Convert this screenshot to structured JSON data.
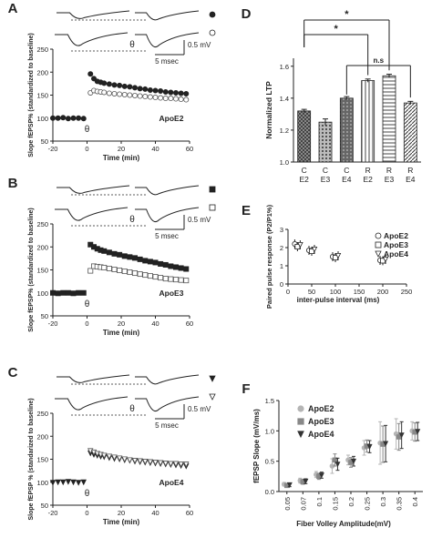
{
  "panel_letters": [
    "A",
    "B",
    "C",
    "D",
    "E",
    "F"
  ],
  "colors": {
    "ink": "#222222",
    "grey": "#9a9a9a",
    "bar_dark": "#555555"
  },
  "chart_data": [
    {
      "panel": "A",
      "type": "scatter",
      "title": "",
      "xlabel": "Time (min)",
      "ylabel": "Slope fEPSP% (standardized to baseline)",
      "x_ticks": [
        "-20",
        "0",
        "20",
        "40",
        "60"
      ],
      "y_ticks": [
        "50",
        "100",
        "150",
        "200",
        "250"
      ],
      "xlim": [
        -20,
        60
      ],
      "ylim": [
        50,
        250
      ],
      "label": "ApoE2",
      "theta_label": "θ",
      "theta_x": 0,
      "scale_bar": {
        "voltage": "0.5 mV",
        "time": "5 msec"
      },
      "trace_markers": [
        "filled-circle",
        "open-circle"
      ],
      "series": [
        {
          "marker": "filled-circle",
          "x": [
            -20,
            -17,
            -14,
            -11,
            -8,
            -5,
            -2,
            2,
            4,
            6,
            8,
            10,
            13,
            16,
            19,
            22,
            25,
            28,
            31,
            34,
            37,
            40,
            43,
            46,
            49,
            52,
            55,
            58
          ],
          "y": [
            100,
            100,
            101,
            99,
            100,
            100,
            99,
            196,
            186,
            180,
            178,
            176,
            174,
            172,
            171,
            169,
            168,
            166,
            164,
            163,
            161,
            160,
            159,
            157,
            156,
            155,
            154,
            153
          ]
        },
        {
          "marker": "open-circle",
          "x": [
            2,
            4,
            6,
            8,
            10,
            13,
            16,
            19,
            22,
            25,
            28,
            31,
            34,
            37,
            40,
            43,
            46,
            49,
            52,
            55,
            58
          ],
          "y": [
            155,
            160,
            158,
            157,
            156,
            154,
            153,
            152,
            151,
            150,
            149,
            148,
            147,
            146,
            145,
            144,
            143,
            143,
            142,
            141,
            140
          ]
        }
      ]
    },
    {
      "panel": "B",
      "type": "scatter",
      "title": "",
      "xlabel": "Time (min)",
      "ylabel": "Slope fEPSP% (standardized to baseline)",
      "x_ticks": [
        "-20",
        "0",
        "20",
        "40",
        "60"
      ],
      "y_ticks": [
        "50",
        "100",
        "150",
        "200",
        "250"
      ],
      "xlim": [
        -20,
        60
      ],
      "ylim": [
        50,
        250
      ],
      "label": "ApoE3",
      "theta_label": "θ",
      "theta_x": 0,
      "scale_bar": {
        "voltage": "0.5 mV",
        "time": "5 msec"
      },
      "trace_markers": [
        "filled-square",
        "open-square"
      ],
      "series": [
        {
          "marker": "filled-square",
          "x": [
            -20,
            -17,
            -14,
            -11,
            -8,
            -5,
            -2,
            2,
            4,
            6,
            8,
            10,
            13,
            16,
            19,
            22,
            25,
            28,
            31,
            34,
            37,
            40,
            43,
            46,
            49,
            52,
            55,
            58
          ],
          "y": [
            100,
            99,
            100,
            100,
            99,
            100,
            100,
            205,
            200,
            196,
            193,
            191,
            188,
            185,
            183,
            180,
            178,
            176,
            173,
            170,
            168,
            166,
            163,
            161,
            158,
            156,
            154,
            152
          ]
        },
        {
          "marker": "open-square",
          "x": [
            2,
            4,
            6,
            8,
            10,
            13,
            16,
            19,
            22,
            25,
            28,
            31,
            34,
            37,
            40,
            43,
            46,
            49,
            52,
            55,
            58
          ],
          "y": [
            148,
            158,
            157,
            156,
            155,
            153,
            151,
            149,
            147,
            145,
            143,
            141,
            139,
            137,
            135,
            133,
            131,
            130,
            129,
            128,
            127
          ]
        }
      ]
    },
    {
      "panel": "C",
      "type": "scatter",
      "title": "",
      "xlabel": "Time (min)",
      "ylabel": "Slope fEPSP % (standarized to baseline)",
      "x_ticks": [
        "-20",
        "0",
        "20",
        "40",
        "60"
      ],
      "y_ticks": [
        "50",
        "100",
        "150",
        "200",
        "250"
      ],
      "xlim": [
        -20,
        60
      ],
      "ylim": [
        50,
        250
      ],
      "label": "ApoE4",
      "theta_label": "θ",
      "theta_x": 0,
      "scale_bar": {
        "voltage": "0.5 mV",
        "time": "5 msec"
      },
      "trace_markers": [
        "filled-triangle",
        "open-triangle"
      ],
      "series": [
        {
          "marker": "filled-triangle",
          "x": [
            -20,
            -17,
            -14,
            -11,
            -8,
            -5,
            -2,
            2,
            4,
            6,
            8,
            10,
            13,
            16,
            19,
            22,
            25,
            28,
            31,
            34,
            37,
            40,
            43,
            46,
            49,
            52,
            55,
            58
          ],
          "y": [
            99,
            100,
            100,
            101,
            100,
            99,
            100,
            163,
            160,
            158,
            156,
            155,
            153,
            151,
            150,
            148,
            147,
            145,
            144,
            143,
            142,
            141,
            140,
            139,
            138,
            137,
            136,
            135
          ]
        },
        {
          "marker": "open-triangle",
          "x": [
            2,
            4,
            6,
            8,
            10,
            13,
            16,
            19,
            22,
            25,
            28,
            31,
            34,
            37,
            40,
            43,
            46,
            49,
            52,
            55,
            58
          ],
          "y": [
            168,
            165,
            162,
            160,
            158,
            156,
            154,
            152,
            150,
            148,
            147,
            146,
            145,
            144,
            143,
            142,
            141,
            140,
            140,
            139,
            139
          ]
        }
      ]
    },
    {
      "panel": "D",
      "type": "bar",
      "title": "",
      "xlabel": "",
      "ylabel": "Normalized LTP",
      "ylim": [
        1.0,
        1.65
      ],
      "y_ticks": [
        "1.0",
        "1.2",
        "1.4",
        "1.6"
      ],
      "categories": [
        [
          "C",
          "E2"
        ],
        [
          "C",
          "E3"
        ],
        [
          "C",
          "E4"
        ],
        [
          "R",
          "E2"
        ],
        [
          "R",
          "E3"
        ],
        [
          "R",
          "E4"
        ]
      ],
      "values": [
        1.32,
        1.25,
        1.4,
        1.51,
        1.54,
        1.37
      ],
      "errors": [
        0.01,
        0.02,
        0.01,
        0.01,
        0.01,
        0.01
      ],
      "patterns": [
        "checker",
        "dots",
        "dense",
        "vertical-lines",
        "horizontal-lines",
        "diagonal"
      ],
      "significance": [
        {
          "from": 0,
          "to": 4,
          "label": "*"
        },
        {
          "from": 0,
          "to": 3,
          "label": "*"
        },
        {
          "from": 2,
          "to": 5,
          "label": "n.s"
        }
      ]
    },
    {
      "panel": "E",
      "type": "scatter",
      "title": "",
      "xlabel": "inter-pulse interval (ms)",
      "ylabel": "Paired pulse response (P2/P1%)",
      "xlim": [
        0,
        250
      ],
      "ylim": [
        0,
        3
      ],
      "x_ticks": [
        "0",
        "50",
        "100",
        "150",
        "200",
        "250"
      ],
      "y_ticks": [
        "0",
        "1",
        "2",
        "3"
      ],
      "legend": [
        "ApoE2",
        "ApoE3",
        "ApoE4"
      ],
      "legend_position": "right",
      "series": [
        {
          "name": "ApoE2",
          "marker": "open-circle",
          "x": [
            20,
            50,
            100,
            200
          ],
          "y": [
            2.2,
            1.85,
            1.5,
            1.3
          ]
        },
        {
          "name": "ApoE3",
          "marker": "open-square",
          "x": [
            20,
            50,
            100,
            200
          ],
          "y": [
            2.05,
            1.8,
            1.45,
            1.28
          ]
        },
        {
          "name": "ApoE4",
          "marker": "open-triangle",
          "x": [
            20,
            50,
            100,
            200
          ],
          "y": [
            2.15,
            1.9,
            1.55,
            1.35
          ]
        }
      ]
    },
    {
      "panel": "F",
      "type": "scatter",
      "title": "",
      "xlabel": "Fiber Volley Amplitude(mV)",
      "ylabel": "fEPSP Slope (mV/ms)",
      "ylim": [
        0,
        1.5
      ],
      "y_ticks": [
        "0.0",
        "0.5",
        "1.0",
        "1.5"
      ],
      "categories": [
        "0.05",
        "0.07",
        "0.1",
        "0.15",
        "0.2",
        "0.25",
        "0.3",
        "0.35",
        "0.4"
      ],
      "legend": [
        "ApoE2",
        "ApoE3",
        "ApoE4"
      ],
      "legend_position": "top-left",
      "series": [
        {
          "name": "ApoE2",
          "marker": "circle",
          "values": [
            0.12,
            0.18,
            0.28,
            0.42,
            0.52,
            0.72,
            0.8,
            0.95,
            1.0
          ],
          "errors": [
            0.03,
            0.04,
            0.05,
            0.12,
            0.08,
            0.12,
            0.35,
            0.25,
            0.15
          ]
        },
        {
          "name": "ApoE3",
          "marker": "square",
          "values": [
            0.1,
            0.16,
            0.25,
            0.52,
            0.48,
            0.75,
            0.78,
            0.9,
            0.98
          ],
          "errors": [
            0.03,
            0.04,
            0.05,
            0.1,
            0.08,
            0.1,
            0.3,
            0.22,
            0.15
          ]
        },
        {
          "name": "ApoE4",
          "marker": "triangle",
          "values": [
            0.11,
            0.17,
            0.27,
            0.45,
            0.5,
            0.74,
            0.79,
            0.93,
            0.99
          ],
          "errors": [
            0.03,
            0.04,
            0.05,
            0.1,
            0.08,
            0.1,
            0.3,
            0.22,
            0.15
          ]
        }
      ]
    }
  ]
}
